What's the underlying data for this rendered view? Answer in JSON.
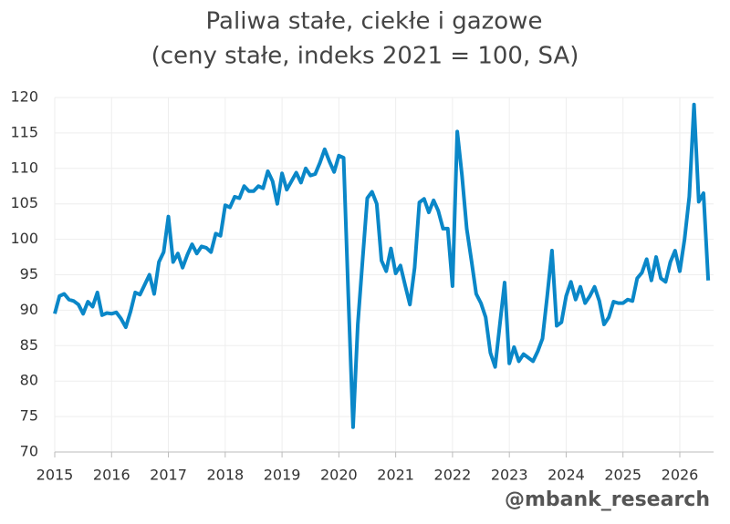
{
  "chart_data": {
    "type": "line",
    "title": "Paliwa stałe, ciekłe i gazowe",
    "subtitle": "(ceny stałe, indeks 2021 = 100, SA)",
    "watermark": "@mbank_research",
    "categories": [
      "2015",
      null,
      null,
      null,
      null,
      null,
      null,
      null,
      null,
      null,
      null,
      null,
      "2016",
      null,
      null,
      null,
      null,
      null,
      null,
      null,
      null,
      null,
      null,
      null,
      "2017",
      null,
      null,
      null,
      null,
      null,
      null,
      null,
      null,
      null,
      null,
      null,
      "2018",
      null,
      null,
      null,
      null,
      null,
      null,
      null,
      null,
      null,
      null,
      null,
      "2019",
      null,
      null,
      null,
      null,
      null,
      null,
      null,
      null,
      null,
      null,
      null,
      "2020",
      null,
      null,
      null,
      null,
      null,
      null,
      null,
      null,
      null,
      null,
      null,
      "2021",
      null,
      null,
      null,
      null,
      null,
      null,
      null,
      null,
      null,
      null,
      null,
      "2022",
      null,
      null,
      null,
      null,
      null,
      null,
      null,
      null,
      null,
      null,
      null,
      "2023",
      null,
      null,
      null,
      null,
      null,
      null,
      null,
      null,
      null,
      null,
      null,
      "2024",
      null,
      null,
      null,
      null,
      null,
      null,
      null,
      null,
      null,
      null,
      null,
      "2025",
      null,
      null,
      null,
      null,
      null,
      null,
      null,
      null,
      null,
      null,
      null,
      "2026",
      null,
      null,
      null,
      null,
      null,
      null
    ],
    "values": [
      89.5,
      92,
      92.3,
      91.5,
      91.3,
      90.8,
      89.5,
      91.2,
      90.5,
      92.5,
      89.3,
      89.6,
      89.5,
      89.7,
      88.8,
      87.6,
      89.8,
      92.5,
      92.2,
      93.6,
      95,
      92.3,
      96.8,
      98.2,
      103.2,
      96.8,
      98,
      96,
      97.8,
      99.3,
      98,
      99,
      98.8,
      98.2,
      100.8,
      100.5,
      104.8,
      104.5,
      106,
      105.8,
      107.5,
      106.8,
      106.8,
      107.5,
      107.2,
      109.6,
      108.2,
      105,
      109.3,
      107,
      108.2,
      109.4,
      108,
      110,
      109,
      109.2,
      110.8,
      112.7,
      111,
      109.5,
      111.8,
      111.5,
      92,
      73.5,
      88,
      97,
      105.8,
      106.7,
      105,
      97,
      95.5,
      98.7,
      95.2,
      96.3,
      93.5,
      90.8,
      96,
      105.2,
      105.7,
      103.8,
      105.5,
      104,
      101.5,
      101.5,
      93.4,
      115.2,
      109,
      101.5,
      97,
      92.3,
      91,
      89,
      84,
      82,
      88,
      93.9,
      82.5,
      84.8,
      82.8,
      83.8,
      83.3,
      82.8,
      84.2,
      86,
      92,
      98.4,
      87.8,
      88.3,
      92,
      94,
      91.5,
      93.3,
      91,
      92,
      93.3,
      91.3,
      88,
      89,
      91.2,
      91,
      91,
      91.5,
      91.3,
      94.5,
      95.3,
      97.2,
      94.2,
      97.5,
      94.5,
      94,
      96.8,
      98.4,
      95.5,
      100,
      106,
      119,
      105.3,
      106.5,
      94.2
    ],
    "color": "#0a87c8",
    "ylim": [
      70,
      120
    ],
    "yticks": [
      70,
      75,
      80,
      85,
      90,
      95,
      100,
      105,
      110,
      115,
      120
    ],
    "grid": true
  }
}
